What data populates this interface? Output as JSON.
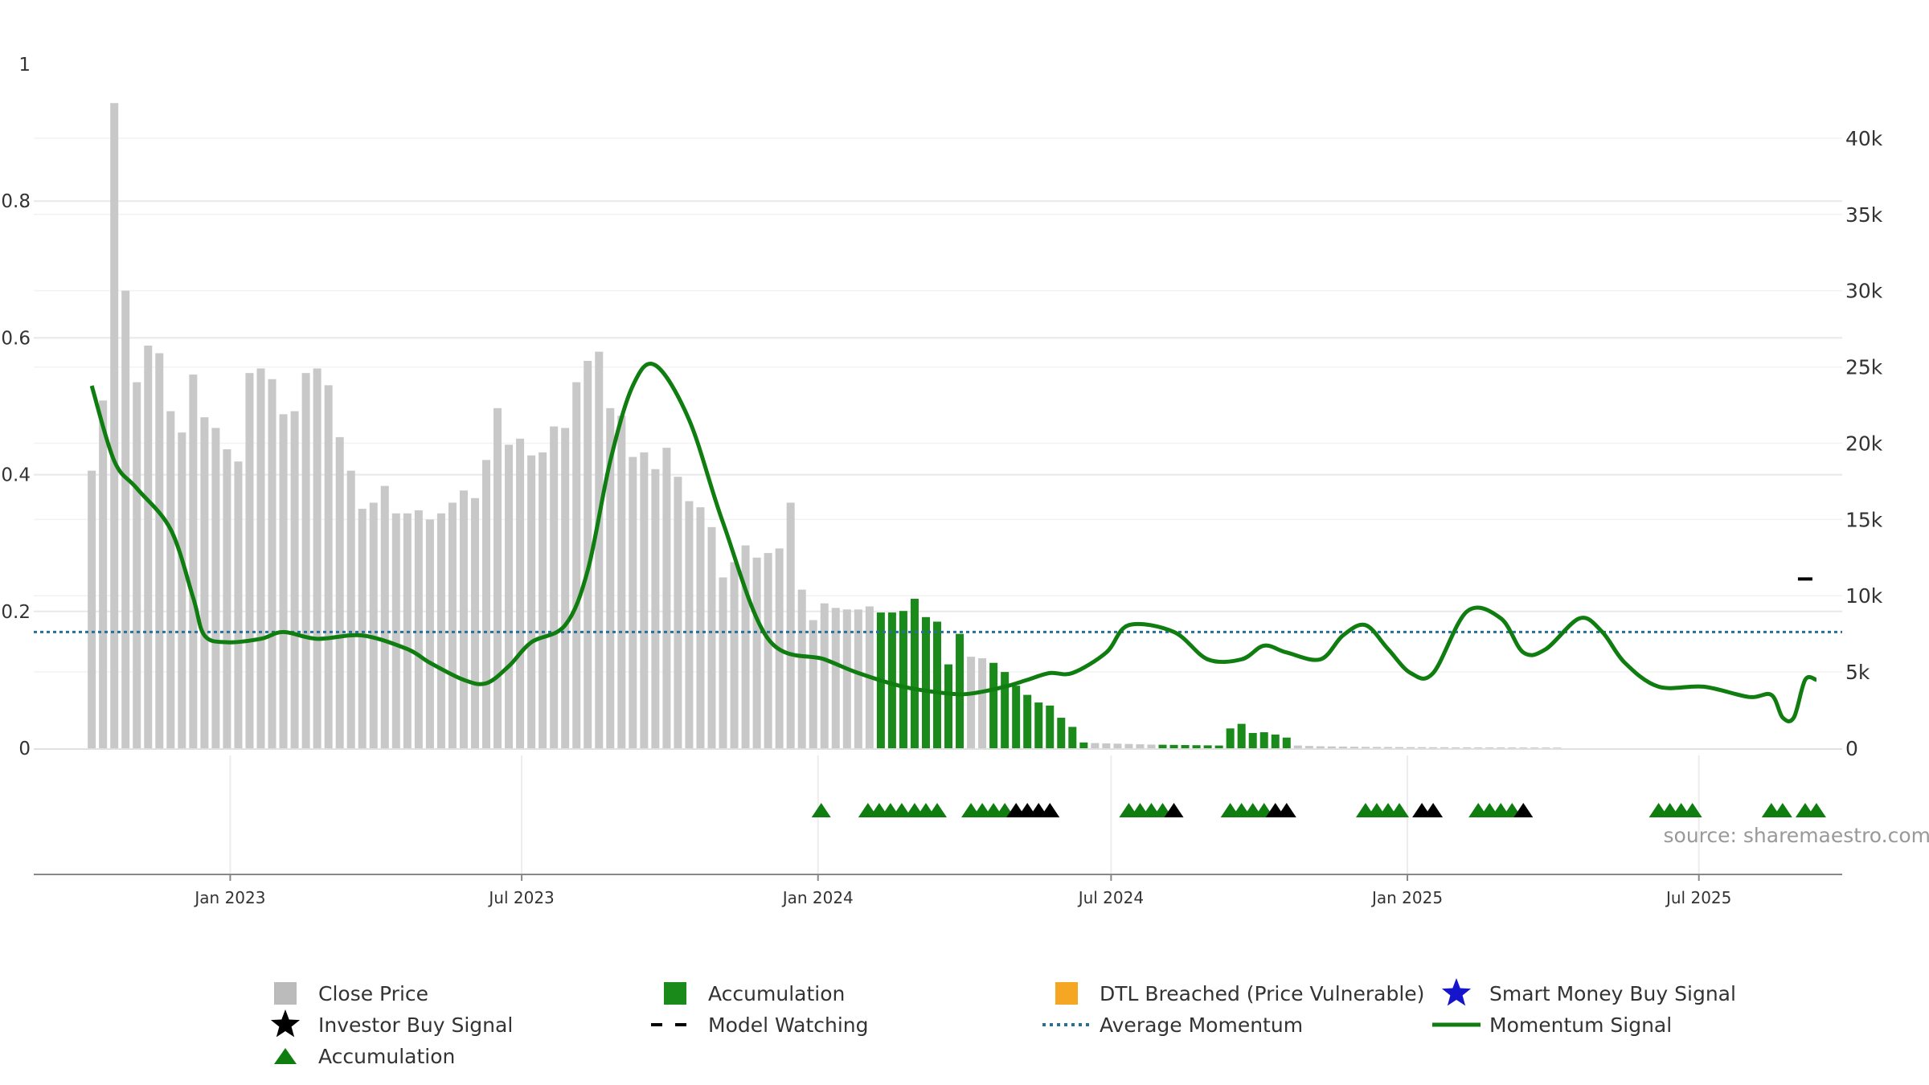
{
  "chart_data": {
    "type": "bar",
    "source": "source: sharemaestro.com",
    "left_axis": {
      "ticks": [
        "0",
        "0.2",
        "0.4",
        "0.6",
        "0.8",
        "1"
      ],
      "ylim": [
        0,
        1
      ]
    },
    "right_axis": {
      "ticks": [
        "0",
        "5k",
        "10k",
        "15k",
        "20k",
        "25k",
        "30k",
        "35k",
        "40k"
      ],
      "ylim": [
        0,
        44000
      ]
    },
    "x_axis": {
      "ticks": [
        "Jan 2023",
        "Jul 2023",
        "Jan 2024",
        "Jul 2024",
        "Jan 2025",
        "Jul 2025"
      ]
    },
    "x_start": "2022-10-07",
    "bar_interval_days": 7,
    "close_price": [
      18200,
      22800,
      42300,
      30000,
      24000,
      26400,
      25900,
      22100,
      20700,
      24500,
      21700,
      21000,
      19600,
      18800,
      24600,
      24900,
      24200,
      21900,
      22100,
      24600,
      24900,
      23800,
      20400,
      18200,
      15700,
      16100,
      17200,
      15400,
      15400,
      15600,
      15000,
      15400,
      16100,
      16900,
      16400,
      18900,
      22300,
      19900,
      20300,
      19200,
      19400,
      21100,
      21000,
      24000,
      25400,
      26000,
      22300,
      21800,
      19100,
      19400,
      18300,
      19700,
      17800,
      16200,
      15800,
      14500,
      11200,
      12200,
      13300,
      12500,
      12800,
      13100,
      16100,
      10400,
      8400,
      9500,
      9200,
      9100,
      9100,
      9300,
      8900,
      8900,
      9000,
      9800,
      8600,
      8300,
      5500,
      7500,
      6000,
      5900,
      5600,
      5000,
      4100,
      3500,
      3000,
      2800,
      2000,
      1400,
      380,
      340,
      320,
      300,
      280,
      260,
      240,
      230,
      220,
      210,
      200,
      190,
      180,
      1300,
      1600,
      1000,
      1050,
      900,
      700,
      180,
      150,
      130,
      120,
      110,
      100,
      90,
      85,
      80,
      75,
      70,
      70,
      65,
      65,
      60,
      60,
      58,
      55,
      55,
      52,
      50,
      50,
      48,
      45
    ],
    "accumulation_bars": [
      70,
      71,
      72,
      73,
      74,
      75,
      76,
      77,
      80,
      81,
      82,
      83,
      84,
      85,
      86,
      87,
      88,
      95,
      96,
      97,
      98,
      99,
      100,
      101,
      102,
      103,
      104,
      105,
      106
    ],
    "model_watching": {
      "date": "2025-09-05",
      "value": 11100
    },
    "average_momentum": 0.17,
    "momentum_signal": {
      "dates": [
        "2022-10-07",
        "2022-10-21",
        "2022-11-04",
        "2022-11-25",
        "2022-12-09",
        "2022-12-16",
        "2022-12-30",
        "2023-01-20",
        "2023-02-03",
        "2023-02-24",
        "2023-03-24",
        "2023-04-21",
        "2023-05-05",
        "2023-05-26",
        "2023-06-09",
        "2023-06-23",
        "2023-07-07",
        "2023-07-28",
        "2023-08-11",
        "2023-08-25",
        "2023-09-08",
        "2023-09-22",
        "2023-10-13",
        "2023-11-03",
        "2023-12-01",
        "2024-01-05",
        "2024-01-26",
        "2024-02-23",
        "2024-03-22",
        "2024-04-05",
        "2024-04-26",
        "2024-05-10",
        "2024-05-24",
        "2024-06-07",
        "2024-06-28",
        "2024-07-12",
        "2024-08-09",
        "2024-08-30",
        "2024-09-20",
        "2024-10-04",
        "2024-10-18",
        "2024-11-08",
        "2024-11-22",
        "2024-12-06",
        "2024-12-20",
        "2025-01-03",
        "2025-01-17",
        "2025-02-07",
        "2025-02-28",
        "2025-03-14",
        "2025-03-28",
        "2025-04-18",
        "2025-05-02",
        "2025-05-16",
        "2025-06-06",
        "2025-07-04",
        "2025-08-01",
        "2025-08-15",
        "2025-08-22",
        "2025-08-29",
        "2025-09-05",
        "2025-09-12"
      ],
      "values": [
        0.53,
        0.42,
        0.38,
        0.32,
        0.22,
        0.165,
        0.155,
        0.16,
        0.17,
        0.16,
        0.165,
        0.145,
        0.125,
        0.1,
        0.095,
        0.12,
        0.155,
        0.18,
        0.26,
        0.42,
        0.53,
        0.56,
        0.48,
        0.33,
        0.16,
        0.13,
        0.11,
        0.09,
        0.08,
        0.08,
        0.09,
        0.1,
        0.11,
        0.11,
        0.14,
        0.18,
        0.17,
        0.13,
        0.13,
        0.15,
        0.14,
        0.13,
        0.165,
        0.18,
        0.145,
        0.11,
        0.11,
        0.2,
        0.19,
        0.14,
        0.145,
        0.19,
        0.17,
        0.125,
        0.09,
        0.09,
        0.075,
        0.078,
        0.045,
        0.045,
        0.1,
        0.1
      ]
    },
    "signals": {
      "accumulation": [
        "2024-02-01",
        "2024-02-08",
        "2024-02-15",
        "2024-02-22",
        "2024-03-01",
        "2024-03-08",
        "2024-03-15",
        "2024-04-05",
        "2024-04-12",
        "2024-04-19",
        "2024-04-26",
        "2024-07-12",
        "2024-07-19",
        "2024-07-26",
        "2024-08-02",
        "2024-09-13",
        "2024-09-20",
        "2024-09-27",
        "2024-10-04",
        "2024-12-06",
        "2024-12-13",
        "2024-12-20",
        "2024-12-27",
        "2024-01-03",
        "2025-02-14",
        "2025-02-21",
        "2025-02-28",
        "2025-03-07",
        "2025-06-06",
        "2025-06-13",
        "2025-06-20",
        "2025-06-27",
        "2025-08-15",
        "2025-08-22",
        "2025-09-05",
        "2025-09-12"
      ],
      "investor_buy": [
        "2024-05-03",
        "2024-05-10",
        "2024-05-17",
        "2024-05-24",
        "2024-08-09",
        "2024-10-11",
        "2024-10-18",
        "2025-01-10",
        "2025-01-17",
        "2025-03-14"
      ]
    },
    "legend": [
      {
        "label": "Close Price",
        "swatch": "square",
        "color": "#bbbbbb"
      },
      {
        "label": "Accumulation",
        "swatch": "square",
        "color": "#1a8a1a"
      },
      {
        "label": "DTL Breached (Price Vulnerable)",
        "swatch": "square",
        "color": "#f5a623"
      },
      {
        "label": "Smart Money Buy Signal",
        "swatch": "star",
        "color": "#1515cc"
      },
      {
        "label": "Investor Buy Signal",
        "swatch": "star",
        "color": "#000000"
      },
      {
        "label": "Model Watching",
        "swatch": "dash",
        "color": "#000000"
      },
      {
        "label": "Average Momentum",
        "swatch": "dots",
        "color": "#2a6f97"
      },
      {
        "label": "Momentum Signal",
        "swatch": "line",
        "color": "#0f7d0f"
      },
      {
        "label": "Accumulation",
        "swatch": "triangle",
        "color": "#0f7d0f"
      }
    ],
    "colors": {
      "close_price": "#c8c8c8",
      "accumulation": "#1a8a1a",
      "momentum": "#0f7d0f",
      "average_momentum": "#2a6f97",
      "grid": "#e8e8e8"
    }
  }
}
